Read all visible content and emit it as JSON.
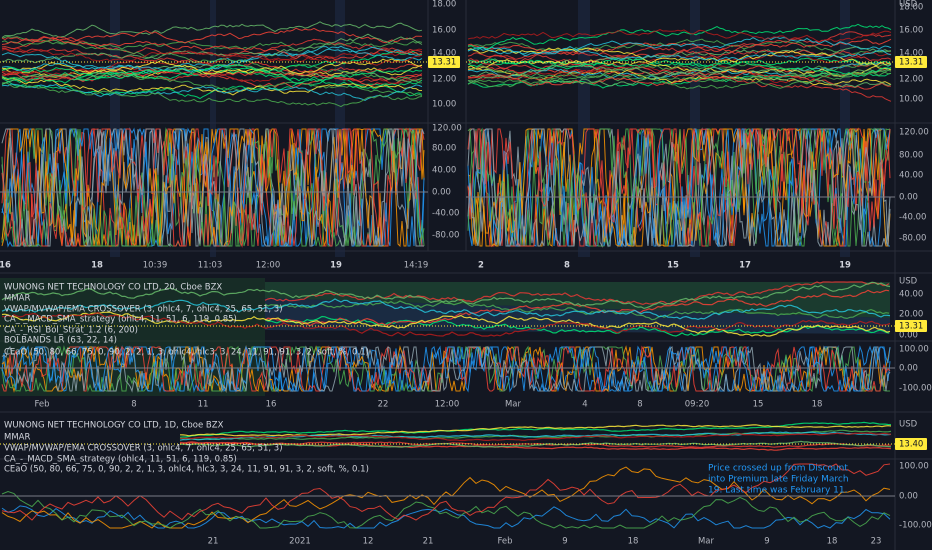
{
  "panels": [
    {
      "price_axis": [
        "18.00",
        "16.00",
        "14.00",
        "12.00",
        "10.00"
      ],
      "badge": "13.31",
      "osc_axis": [
        "120.00",
        "80.00",
        "40.00",
        "0.00",
        "-40.00",
        "-80.00"
      ],
      "time_axis": [
        "16",
        "18",
        "10:39",
        "11:03",
        "12:00",
        "19",
        "14:19"
      ]
    },
    {
      "unit": "USD",
      "price_axis": [
        "18.00",
        "16.00",
        "14.00",
        "12.00",
        "10.00"
      ],
      "badge": "13.31",
      "osc_axis": [
        "120.00",
        "80.00",
        "40.00",
        "0.00",
        "-40.00",
        "-80.00"
      ],
      "time_axis": [
        "2",
        "8",
        "15",
        "17",
        "19"
      ]
    },
    {
      "legend": [
        "WUNONG NET TECHNOLOGY CO LTD, 20, Cboe BZX",
        "MMAR",
        "VWAP/MVWAP/EMA CROSSOVER (3, ohlc4, 7, ohlc4, 25, 65, 51, 3)",
        "CA_-_MACD_SMA_strategy (ohlc4, 11, 51, 6, 119, 0.85)",
        "CA_-_RSI_Bol_Strat_1.2 (6, 200)",
        "BOLBANDS LR (63, 22, 14)"
      ],
      "osc_legend": "CEaO (50, 80, 66, 75, 0, 90, 2, 2, 1, 3, ohlc4, hlc3, 3, 24, 11, 91, 91, 3, 2, soft, %, 0.1)",
      "unit": "USD",
      "price_axis": [
        "40.00",
        "20.00",
        "0.00"
      ],
      "badge": "13.31",
      "osc_axis": [
        "100.00",
        "0.00",
        "-100.00"
      ],
      "time_axis": [
        "Feb",
        "8",
        "11",
        "16",
        "22",
        "12:00",
        "Mar",
        "4",
        "8",
        "09:20",
        "15",
        "18"
      ]
    },
    {
      "legend": [
        "WUNONG NET TECHNOLOGY CO LTD, 1D, Cboe BZX",
        "MMAR",
        "VWAP/MVWAP/EMA CROSSOVER (3, ohlc4, 7, ohlc4, 25, 65, 51, 3)",
        "CA_-_MACD_SMA_strategy (ohlc4, 11, 51, 6, 119, 0.85)"
      ],
      "osc_legend": "CEaO (50, 80, 66, 75, 0, 90, 2, 2, 1, 3, ohlc4, hlc3, 3, 24, 11, 91, 91, 3, 2, soft, %, 0.1)",
      "unit": "USD",
      "badge": "13.40",
      "osc_axis": [
        "100.00",
        "0.00",
        "-100.00"
      ],
      "time_axis": [
        "21",
        "2021",
        "12",
        "21",
        "Feb",
        "9",
        "18",
        "Mar",
        "9",
        "18",
        "23"
      ],
      "annotation": [
        "Price crossed up from Discount",
        "into Premium late Friday March",
        "19. Last time was February 11."
      ]
    }
  ]
}
